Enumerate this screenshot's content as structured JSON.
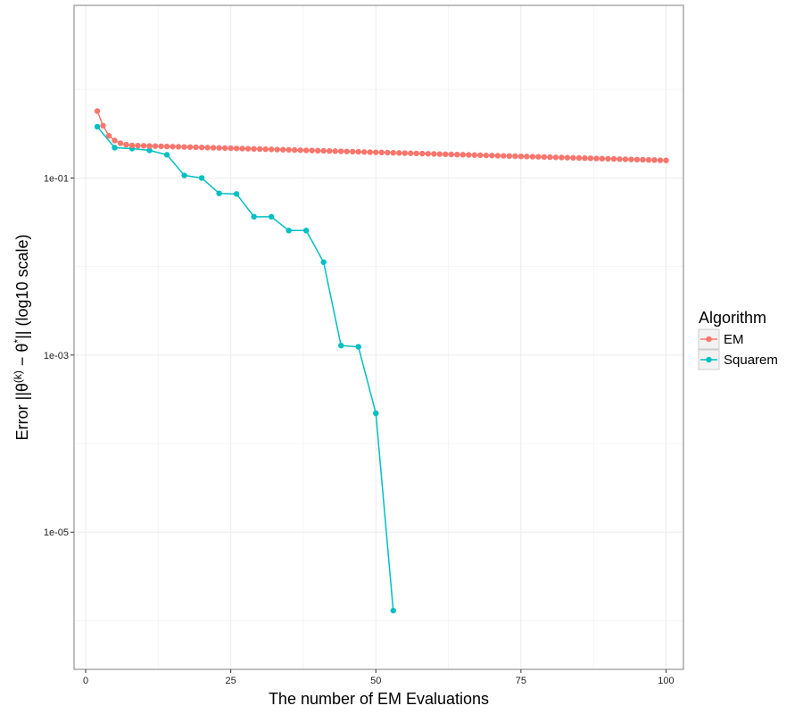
{
  "chart_data": {
    "type": "line",
    "title": "",
    "xlabel": "The number of EM Evaluations",
    "ylabel": {
      "prefix": "Error ||θ",
      "sup_k": "(k)",
      "mid": " − θ",
      "sup_star": "*",
      "suffix": "|| (log10 scale)"
    },
    "xlim": [
      -2,
      103
    ],
    "ylim_log10": [
      -6.55,
      0.95
    ],
    "y_scale": "log10",
    "grid": true,
    "x_ticks": [
      0,
      25,
      50,
      75,
      100
    ],
    "x_tick_labels": [
      "0",
      "25",
      "50",
      "75",
      "100"
    ],
    "y_ticks_log10": [
      -5,
      -3,
      -1
    ],
    "y_tick_labels": [
      "1e-05",
      "1e-03",
      "1e-01"
    ],
    "legend": {
      "title": "Algorithm",
      "placement": "right"
    },
    "series": [
      {
        "name": "EM",
        "color": "#F8766D",
        "x_start": 2,
        "x_end": 100,
        "points": [
          [
            2,
            0.57
          ],
          [
            3,
            0.39
          ],
          [
            4,
            0.3
          ],
          [
            5,
            0.265
          ],
          [
            6,
            0.247
          ],
          [
            7,
            0.238
          ],
          [
            8,
            0.233
          ]
        ],
        "tail": {
          "x_from": 9,
          "y_from": 0.232,
          "x_to": 100,
          "y_to": 0.158
        }
      },
      {
        "name": "Squarem",
        "color": "#00BFC4",
        "x": [
          2,
          5,
          8,
          11,
          14,
          17,
          20,
          23,
          26,
          29,
          32,
          35,
          38,
          41,
          44,
          47,
          50,
          53
        ],
        "y": [
          0.38,
          0.22,
          0.215,
          0.205,
          0.183,
          0.107,
          0.1,
          0.067,
          0.066,
          0.0365,
          0.0365,
          0.0255,
          0.0255,
          0.0112,
          0.00128,
          0.00124,
          0.00022,
          1.3e-06
        ]
      }
    ]
  }
}
